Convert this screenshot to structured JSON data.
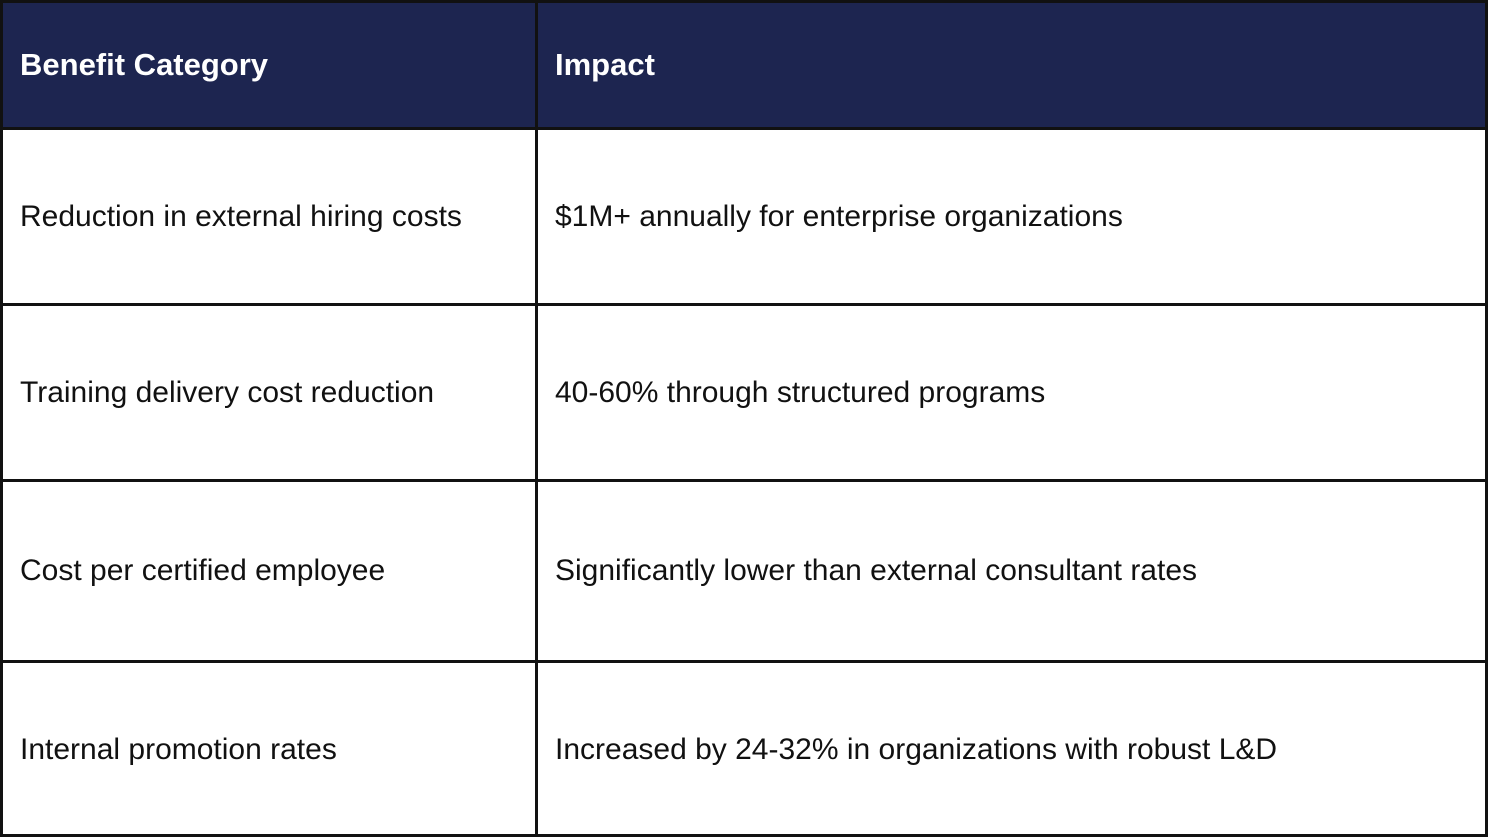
{
  "table": {
    "headers": [
      "Benefit Category",
      "Impact"
    ],
    "rows": [
      [
        "Reduction in external hiring costs",
        "$1M+ annually for enterprise organizations"
      ],
      [
        "Training delivery cost reduction",
        "40-60% through structured programs"
      ],
      [
        "Cost per certified employee",
        "Significantly lower than external consultant rates"
      ],
      [
        "Internal promotion rates",
        "Increased by 24-32% in organizations with robust L&D"
      ]
    ],
    "header_color": "#1d2550"
  }
}
